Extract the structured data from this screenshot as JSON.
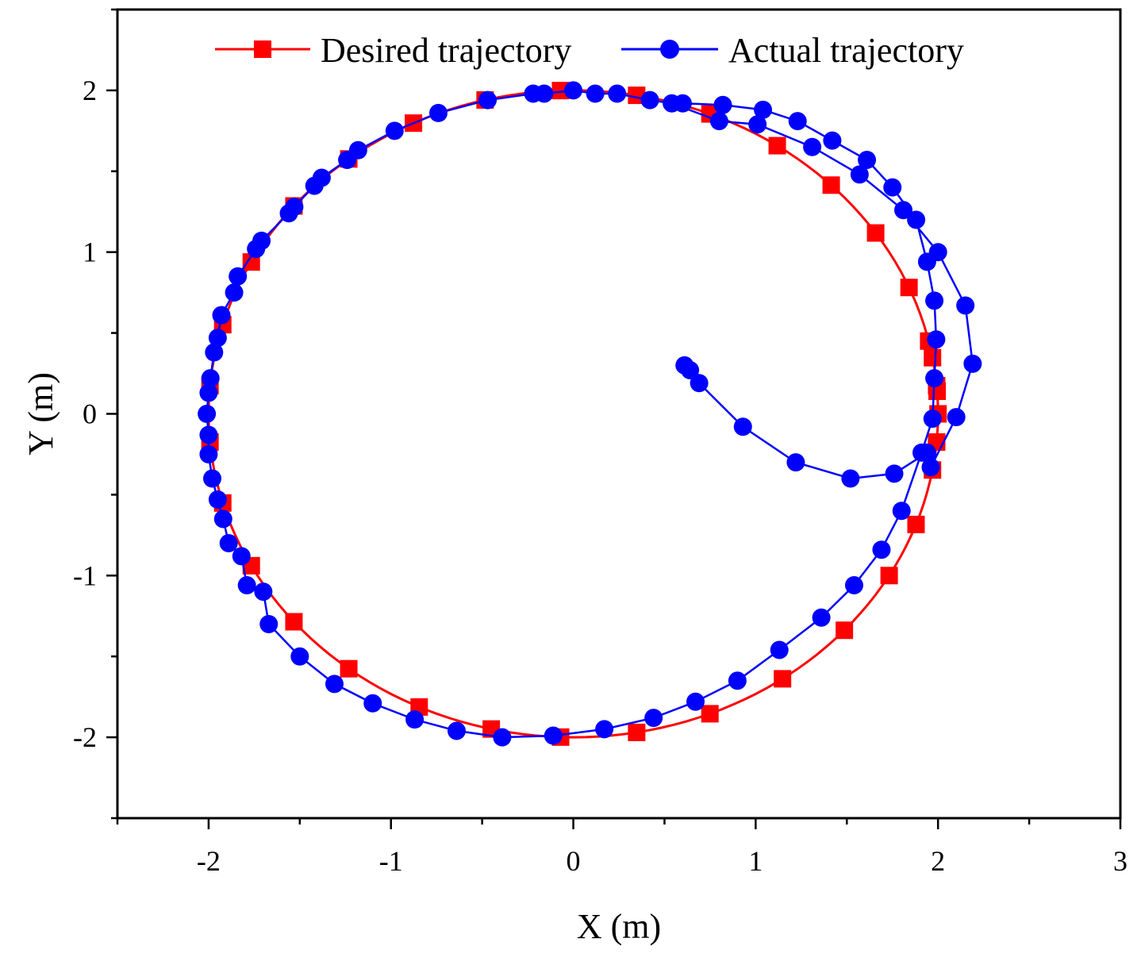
{
  "chart_data": {
    "type": "scatter",
    "title": "",
    "xlabel": "X (m)",
    "ylabel": "Y (m)",
    "xlim": [
      -2.5,
      3
    ],
    "ylim": [
      -2.5,
      2.5
    ],
    "x_ticks": [
      -2,
      -1,
      0,
      1,
      2,
      3
    ],
    "y_ticks": [
      -2,
      -1,
      0,
      1,
      2
    ],
    "x_tick_labels": [
      "-2",
      "-1",
      "0",
      "1",
      "2",
      "3"
    ],
    "y_tick_labels": [
      "-2",
      "-1",
      "0",
      "1",
      "2"
    ],
    "legend_position": "top",
    "grid": false,
    "series": [
      {
        "name": "Desired trajectory",
        "color": "#ff0000",
        "marker": "square",
        "line": true,
        "marker_angles_deg": [
          10,
          5,
          0,
          -5,
          -10,
          -20,
          -30,
          -42,
          -55,
          -68,
          -80,
          -92,
          -103,
          -115,
          -128,
          -140,
          -152,
          -164,
          -175,
          -185,
          -196,
          -208,
          -220,
          -232,
          -244,
          -256,
          -268,
          -280,
          -292,
          -304,
          -315,
          -326,
          -337,
          -347,
          -356,
          -365
        ],
        "radius": 2.0
      },
      {
        "name": "Actual trajectory",
        "color": "#0000ff",
        "marker": "circle",
        "line": true,
        "x": [
          0.61,
          0.64,
          0.69,
          0.93,
          1.22,
          1.52,
          1.76,
          1.94,
          1.96,
          2.1,
          2.19,
          2.15,
          2.0,
          1.81,
          1.57,
          1.31,
          1.01,
          0.8,
          0.54,
          0.42,
          0.24,
          0.12,
          0.0,
          -0.16,
          -0.22,
          -0.47,
          -0.74,
          -0.98,
          -1.18,
          -1.24,
          -1.38,
          -1.42,
          -1.53,
          -1.56,
          -1.71,
          -1.74,
          -1.84,
          -1.86,
          -1.93,
          -1.95,
          -1.97,
          -1.99,
          -2.0,
          -2.01,
          -2.0,
          -2.0,
          -1.98,
          -1.95,
          -1.92,
          -1.89,
          -1.82,
          -1.79,
          -1.7,
          -1.67,
          -1.5,
          -1.31,
          -1.1,
          -0.87,
          -0.64,
          -0.39,
          -0.11,
          0.17,
          0.44,
          0.67,
          0.9,
          1.13,
          1.36,
          1.54,
          1.69,
          1.8,
          1.91,
          1.97,
          1.98,
          1.99,
          1.98,
          1.94,
          1.88,
          1.75,
          1.61,
          1.42,
          1.23,
          1.04,
          0.82,
          0.6
        ],
        "y": [
          0.3,
          0.27,
          0.19,
          -0.08,
          -0.3,
          -0.4,
          -0.37,
          -0.24,
          -0.33,
          -0.02,
          0.31,
          0.67,
          1.0,
          1.26,
          1.48,
          1.65,
          1.79,
          1.81,
          1.92,
          1.94,
          1.98,
          1.98,
          2.0,
          1.98,
          1.98,
          1.94,
          1.86,
          1.75,
          1.63,
          1.57,
          1.46,
          1.41,
          1.28,
          1.24,
          1.07,
          1.02,
          0.85,
          0.75,
          0.61,
          0.47,
          0.38,
          0.22,
          0.13,
          0.0,
          -0.13,
          -0.25,
          -0.4,
          -0.53,
          -0.65,
          -0.8,
          -0.88,
          -1.06,
          -1.1,
          -1.3,
          -1.5,
          -1.67,
          -1.79,
          -1.89,
          -1.96,
          -2.0,
          -1.99,
          -1.95,
          -1.88,
          -1.78,
          -1.65,
          -1.46,
          -1.26,
          -1.06,
          -0.84,
          -0.6,
          -0.24,
          -0.03,
          0.22,
          0.46,
          0.7,
          0.94,
          1.2,
          1.4,
          1.57,
          1.69,
          1.81,
          1.88,
          1.91,
          1.92
        ]
      }
    ]
  }
}
